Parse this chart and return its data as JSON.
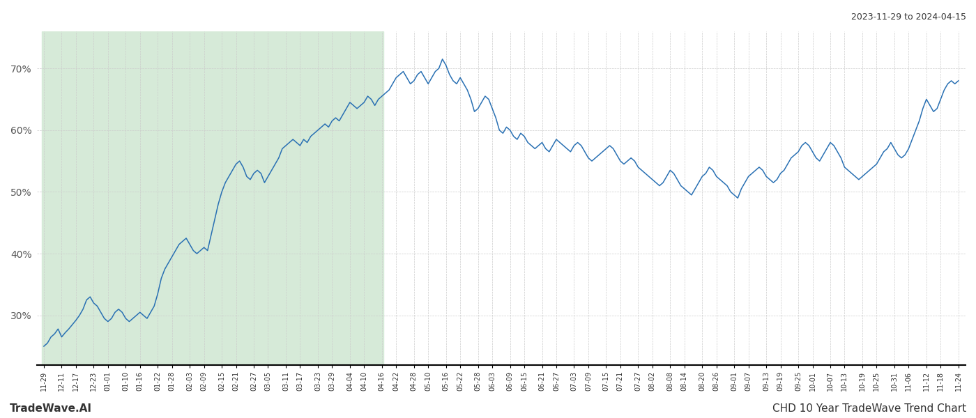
{
  "title_right": "2023-11-29 to 2024-04-15",
  "footer_left": "TradeWave.AI",
  "footer_right": "CHD 10 Year TradeWave Trend Chart",
  "y_ticks": [
    30,
    40,
    50,
    60,
    70
  ],
  "y_min": 22,
  "y_max": 76,
  "line_color": "#2970b3",
  "highlight_color": "#d6ead8",
  "background_color": "#ffffff",
  "grid_color": "#cccccc",
  "x_labels": [
    "11-29",
    "12-11",
    "12-17",
    "12-23",
    "01-01",
    "01-10",
    "01-16",
    "01-22",
    "01-28",
    "02-03",
    "02-09",
    "02-15",
    "02-21",
    "02-27",
    "03-05",
    "03-11",
    "03-17",
    "03-23",
    "03-29",
    "04-04",
    "04-10",
    "04-16",
    "04-22",
    "04-28",
    "05-10",
    "05-16",
    "05-22",
    "05-28",
    "06-03",
    "06-09",
    "06-15",
    "06-21",
    "06-27",
    "07-03",
    "07-09",
    "07-15",
    "07-21",
    "07-27",
    "08-02",
    "08-08",
    "08-14",
    "08-20",
    "08-26",
    "09-01",
    "09-07",
    "09-13",
    "09-19",
    "09-25",
    "10-01",
    "10-07",
    "10-13",
    "10-19",
    "10-25",
    "10-31",
    "11-06",
    "11-12",
    "11-18",
    "11-24"
  ],
  "highlight_label_end": "04-16",
  "values": [
    25.0,
    25.5,
    26.5,
    27.0,
    27.8,
    26.5,
    27.2,
    27.8,
    28.5,
    29.2,
    30.0,
    31.0,
    32.5,
    33.0,
    32.0,
    31.5,
    30.5,
    29.5,
    29.0,
    29.5,
    30.5,
    31.0,
    30.5,
    29.5,
    29.0,
    29.5,
    30.0,
    30.5,
    30.0,
    29.5,
    30.5,
    31.5,
    33.5,
    36.0,
    37.5,
    38.5,
    39.5,
    40.5,
    41.5,
    42.0,
    42.5,
    41.5,
    40.5,
    40.0,
    40.5,
    41.0,
    40.5,
    43.0,
    45.5,
    48.0,
    50.0,
    51.5,
    52.5,
    53.5,
    54.5,
    55.0,
    54.0,
    52.5,
    52.0,
    53.0,
    53.5,
    53.0,
    51.5,
    52.5,
    53.5,
    54.5,
    55.5,
    57.0,
    57.5,
    58.0,
    58.5,
    58.0,
    57.5,
    58.5,
    58.0,
    59.0,
    59.5,
    60.0,
    60.5,
    61.0,
    60.5,
    61.5,
    62.0,
    61.5,
    62.5,
    63.5,
    64.5,
    64.0,
    63.5,
    64.0,
    64.5,
    65.5,
    65.0,
    64.0,
    65.0,
    65.5,
    66.0,
    66.5,
    67.5,
    68.5,
    69.0,
    69.5,
    68.5,
    67.5,
    68.0,
    69.0,
    69.5,
    68.5,
    67.5,
    68.5,
    69.5,
    70.0,
    71.5,
    70.5,
    69.0,
    68.0,
    67.5,
    68.5,
    67.5,
    66.5,
    65.0,
    63.0,
    63.5,
    64.5,
    65.5,
    65.0,
    63.5,
    62.0,
    60.0,
    59.5,
    60.5,
    60.0,
    59.0,
    58.5,
    59.5,
    59.0,
    58.0,
    57.5,
    57.0,
    57.5,
    58.0,
    57.0,
    56.5,
    57.5,
    58.5,
    58.0,
    57.5,
    57.0,
    56.5,
    57.5,
    58.0,
    57.5,
    56.5,
    55.5,
    55.0,
    55.5,
    56.0,
    56.5,
    57.0,
    57.5,
    57.0,
    56.0,
    55.0,
    54.5,
    55.0,
    55.5,
    55.0,
    54.0,
    53.5,
    53.0,
    52.5,
    52.0,
    51.5,
    51.0,
    51.5,
    52.5,
    53.5,
    53.0,
    52.0,
    51.0,
    50.5,
    50.0,
    49.5,
    50.5,
    51.5,
    52.5,
    53.0,
    54.0,
    53.5,
    52.5,
    52.0,
    51.5,
    51.0,
    50.0,
    49.5,
    49.0,
    50.5,
    51.5,
    52.5,
    53.0,
    53.5,
    54.0,
    53.5,
    52.5,
    52.0,
    51.5,
    52.0,
    53.0,
    53.5,
    54.5,
    55.5,
    56.0,
    56.5,
    57.5,
    58.0,
    57.5,
    56.5,
    55.5,
    55.0,
    56.0,
    57.0,
    58.0,
    57.5,
    56.5,
    55.5,
    54.0,
    53.5,
    53.0,
    52.5,
    52.0,
    52.5,
    53.0,
    53.5,
    54.0,
    54.5,
    55.5,
    56.5,
    57.0,
    58.0,
    57.0,
    56.0,
    55.5,
    56.0,
    57.0,
    58.5,
    60.0,
    61.5,
    63.5,
    65.0,
    64.0,
    63.0,
    63.5,
    65.0,
    66.5,
    67.5,
    68.0,
    67.5,
    68.0
  ]
}
